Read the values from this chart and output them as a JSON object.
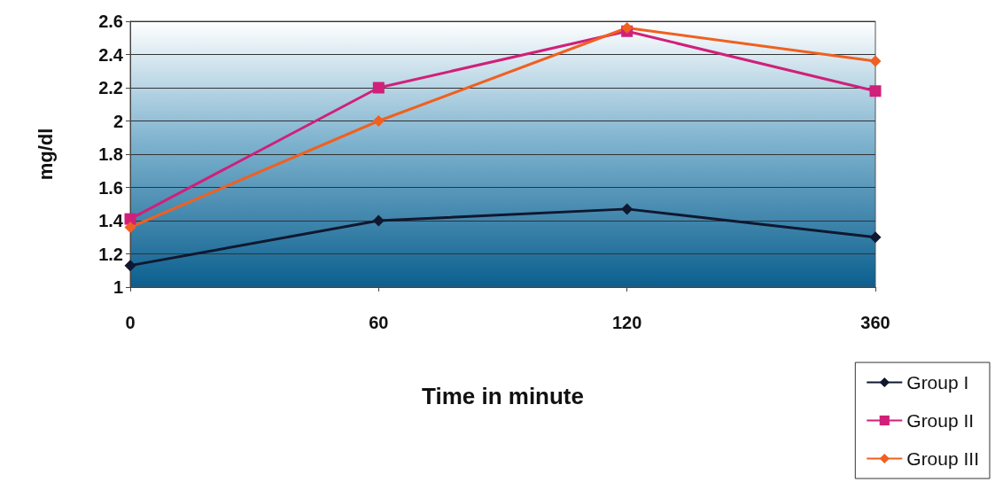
{
  "chart_data": {
    "type": "line",
    "xlabel": "Time in minute",
    "ylabel": "mg/dl",
    "categories": [
      "0",
      "60",
      "120",
      "360"
    ],
    "series": [
      {
        "name": "Group I",
        "color": "#101830",
        "marker": "diamond",
        "values": [
          1.13,
          1.4,
          1.47,
          1.3
        ]
      },
      {
        "name": "Group II",
        "color": "#d0207a",
        "marker": "square",
        "values": [
          1.41,
          2.2,
          2.54,
          2.18
        ]
      },
      {
        "name": "Group III",
        "color": "#f06020",
        "marker": "diamond",
        "values": [
          1.36,
          2.0,
          2.56,
          2.36
        ]
      }
    ],
    "ylim": [
      1,
      2.6
    ],
    "yticks": [
      1,
      1.2,
      1.4,
      1.6,
      1.8,
      2,
      2.2,
      2.4,
      2.6
    ],
    "grid": "y",
    "legend": "bottom right",
    "line_style": "solid"
  }
}
